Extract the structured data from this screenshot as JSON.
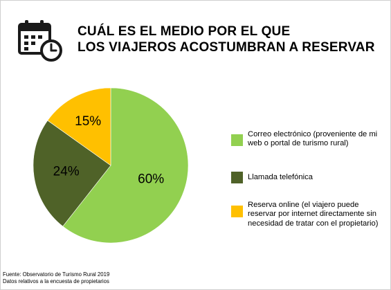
{
  "title": {
    "line1": "CUÁL ES EL MEDIO POR EL QUE",
    "line2": "LOS VIAJEROS ACOSTUMBRAN A RESERVAR"
  },
  "icon": "calendar-clock-icon",
  "chart_data": {
    "type": "pie",
    "categories": [
      "Correo electrónico (proveniente de mi web o portal de turismo rural)",
      "Llamada telefónica",
      "Reserva online (el viajero puede reservar por internet directamente sin necesidad de tratar con el propietario)"
    ],
    "values": [
      60,
      24,
      15
    ],
    "value_labels": [
      "60%",
      "24%",
      "15%"
    ],
    "colors": [
      "#92d050",
      "#4f6228",
      "#ffc000"
    ],
    "legend_position": "right"
  },
  "legend": [
    {
      "label": "Correo electrónico (proveniente de mi web o portal de turismo rural)",
      "color": "#92d050"
    },
    {
      "label": "Llamada telefónica",
      "color": "#4f6228"
    },
    {
      "label": "Reserva online (el viajero puede reservar por internet directamente sin necesidad de tratar con el propietario)",
      "color": "#ffc000"
    }
  ],
  "source": {
    "line1": "Fuente: Observatorio de Turismo Rural 2019",
    "line2": "Datos relativos a la encuesta de propietarios"
  }
}
